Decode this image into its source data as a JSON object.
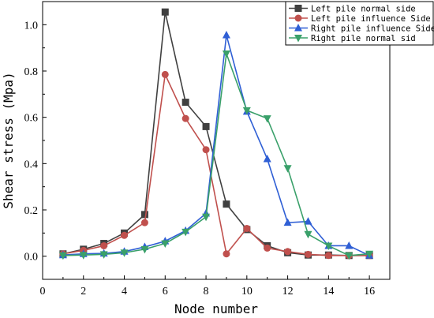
{
  "chart_data": {
    "type": "line",
    "xlabel": "Node number",
    "ylabel": "Shear stress (Mpa)",
    "xlim": [
      0,
      17
    ],
    "ylim": [
      -0.1,
      1.1
    ],
    "xticks": [
      0,
      2,
      4,
      6,
      8,
      10,
      12,
      14,
      16
    ],
    "yticks": [
      0.0,
      0.2,
      0.4,
      0.6,
      0.8,
      1.0
    ],
    "xtick_labels": [
      "0",
      "2",
      "4",
      "6",
      "8",
      "10",
      "12",
      "14",
      "16"
    ],
    "ytick_labels": [
      "0.0",
      "0.2",
      "0.4",
      "0.6",
      "0.8",
      "1.0"
    ],
    "legend_position": "top-right",
    "grid": false,
    "x": [
      1,
      2,
      3,
      4,
      5,
      6,
      7,
      8,
      9,
      10,
      11,
      12,
      13,
      14,
      15,
      16
    ],
    "series": [
      {
        "name": "Left pile normal side",
        "color": "#404040",
        "marker": "square",
        "values": [
          0.01,
          0.03,
          0.055,
          0.1,
          0.18,
          1.055,
          0.665,
          0.56,
          0.225,
          0.115,
          0.045,
          0.015,
          0.005,
          0.005,
          0.003,
          0.003
        ]
      },
      {
        "name": "Left pile influence Side",
        "color": "#c0504d",
        "marker": "circle",
        "values": [
          0.01,
          0.025,
          0.045,
          0.09,
          0.145,
          0.785,
          0.595,
          0.46,
          0.01,
          0.12,
          0.035,
          0.02,
          0.008,
          0.003,
          0.003,
          0.003
        ]
      },
      {
        "name": "Right pile influence Side",
        "color": "#2f5fd5",
        "marker": "triangle-up",
        "values": [
          0.005,
          0.01,
          0.012,
          0.02,
          0.04,
          0.065,
          0.11,
          0.185,
          0.955,
          0.625,
          0.42,
          0.145,
          0.15,
          0.045,
          0.045,
          0.003
        ]
      },
      {
        "name": "Right pile normal sid",
        "color": "#3aa06a",
        "marker": "triangle-down",
        "values": [
          0.003,
          0.005,
          0.008,
          0.015,
          0.03,
          0.055,
          0.105,
          0.17,
          0.875,
          0.63,
          0.595,
          0.38,
          0.095,
          0.045,
          0.003,
          0.01
        ]
      }
    ]
  }
}
